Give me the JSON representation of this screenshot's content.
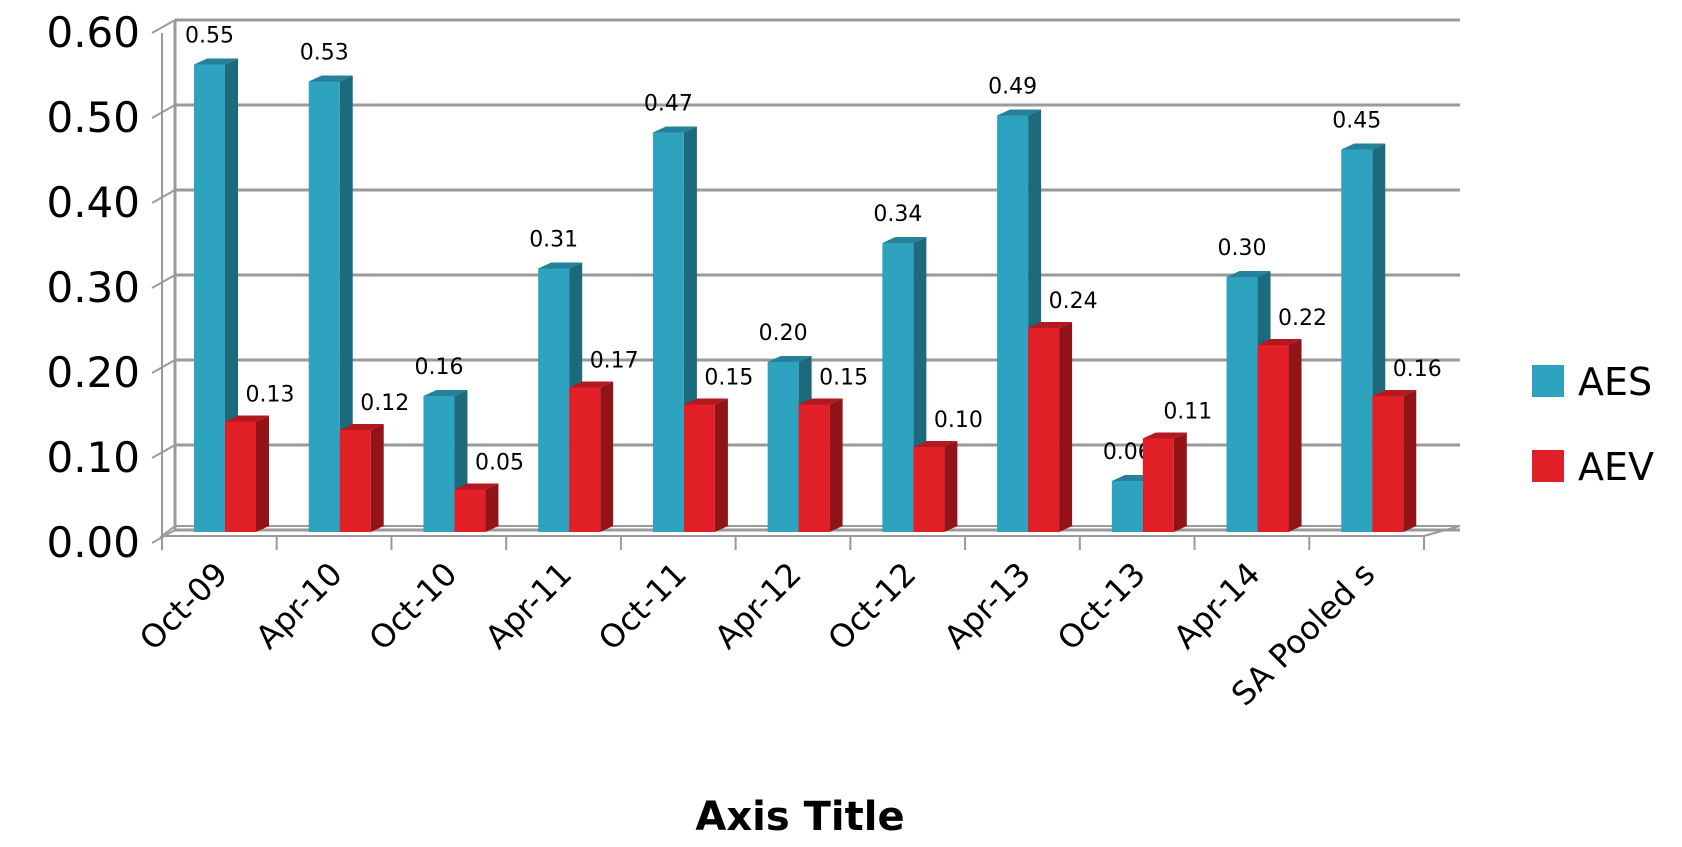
{
  "chart_data": {
    "type": "bar",
    "categories": [
      "Oct-09",
      "Apr-10",
      "Oct-10",
      "Apr-11",
      "Oct-11",
      "Apr-12",
      "Oct-12",
      "Apr-13",
      "Oct-13",
      "Apr-14",
      "SA Pooled s"
    ],
    "series": [
      {
        "name": "AES",
        "color": "#2ea3c0",
        "values": [
          0.55,
          0.53,
          0.16,
          0.31,
          0.47,
          0.2,
          0.34,
          0.49,
          0.06,
          0.3,
          0.45
        ],
        "labels": [
          "0.55",
          "0.53",
          "0.16",
          "0.31",
          "0.47",
          "0.20",
          "0.34",
          "0.49",
          "0.06",
          "0.30",
          "0.45"
        ]
      },
      {
        "name": "AEV",
        "color": "#e01f27",
        "values": [
          0.13,
          0.12,
          0.05,
          0.17,
          0.15,
          0.15,
          0.1,
          0.24,
          0.11,
          0.22,
          0.16
        ],
        "labels": [
          "0.13",
          "0.12",
          "0.05",
          "0.17",
          "0.15",
          "0.15",
          "0.10",
          "0.24",
          "0.11",
          "0.22",
          "0.16"
        ]
      }
    ],
    "yticks": [
      "0.00",
      "0.10",
      "0.20",
      "0.30",
      "0.40",
      "0.50",
      "0.60"
    ],
    "ylim": [
      0,
      0.6
    ],
    "xlabel": "Axis Title",
    "ylabel": "",
    "grid": true,
    "legend_position": "right",
    "style": "3d-clustered-column"
  }
}
